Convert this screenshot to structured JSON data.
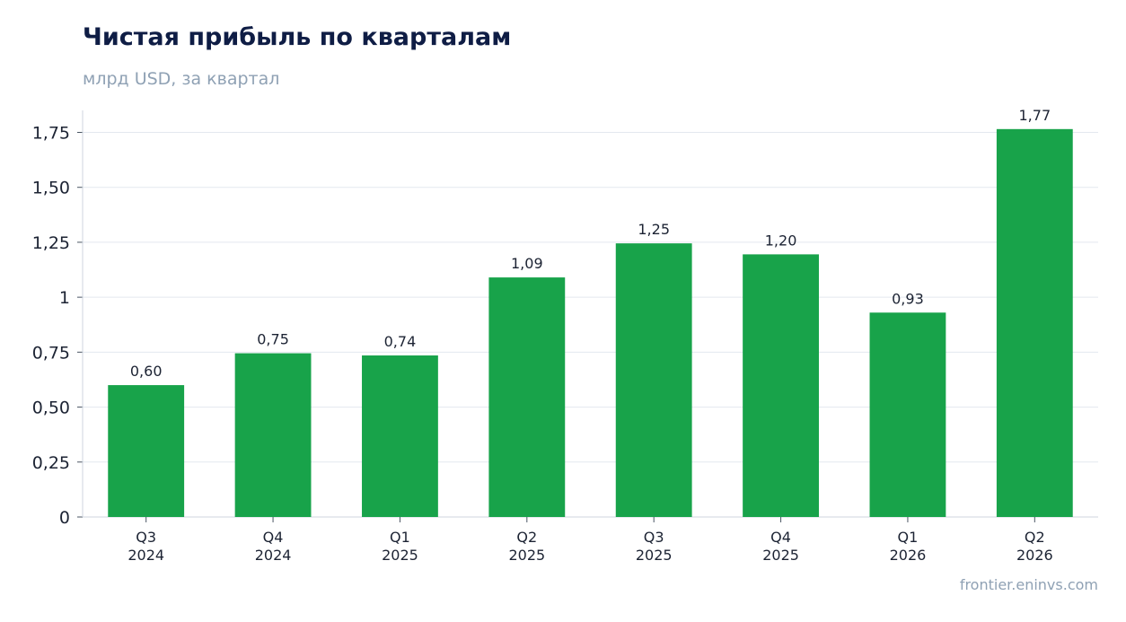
{
  "header": {
    "title": "Чистая прибыль по кварталам",
    "subtitle": "млрд USD, за квартал"
  },
  "footer": {
    "source": "frontier.eninvs.com"
  },
  "chart_data": {
    "type": "bar",
    "title": "Чистая прибыль по кварталам",
    "subtitle": "млрд USD, за квартал",
    "categories": [
      [
        "Q3",
        "2024"
      ],
      [
        "Q4",
        "2024"
      ],
      [
        "Q1",
        "2025"
      ],
      [
        "Q2",
        "2025"
      ],
      [
        "Q3",
        "2025"
      ],
      [
        "Q4",
        "2025"
      ],
      [
        "Q1",
        "2026"
      ],
      [
        "Q2",
        "2026"
      ]
    ],
    "values": [
      0.6,
      0.745,
      0.735,
      1.09,
      1.245,
      1.195,
      0.93,
      1.765
    ],
    "data_labels": [
      "0,60",
      "0,75",
      "0,74",
      "1,09",
      "1,25",
      "1,20",
      "0,93",
      "1,77"
    ],
    "ylim": [
      0,
      1.85
    ],
    "yticks": [
      0,
      0.25,
      0.5,
      0.75,
      1,
      1.25,
      1.5,
      1.75
    ],
    "ytick_labels": [
      "0",
      "0,25",
      "0,50",
      "0,75",
      "1",
      "1,25",
      "1,50",
      "1,75"
    ],
    "xlabel": "",
    "ylabel": "",
    "grid": true,
    "colors": {
      "bar": "#18a34a",
      "grid": "#e3e8ef",
      "axis": "#cfd6df",
      "title": "#0f1d45",
      "muted": "#8fa1b4"
    }
  }
}
